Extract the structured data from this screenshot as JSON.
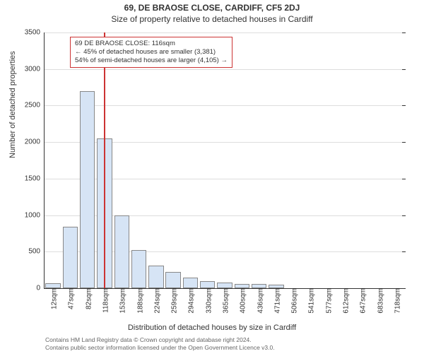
{
  "titles": {
    "main": "69, DE BRAOSE CLOSE, CARDIFF, CF5 2DJ",
    "sub": "Size of property relative to detached houses in Cardiff"
  },
  "axes": {
    "y_title": "Number of detached properties",
    "x_title": "Distribution of detached houses by size in Cardiff",
    "y_min": 0,
    "y_max": 3500,
    "y_tick_step": 500,
    "y_tick_fontsize": 10,
    "x_tick_fontsize": 10,
    "title_fontsize": 11
  },
  "chart": {
    "type": "bar",
    "background_color": "#ffffff",
    "grid_color": "#dddddd",
    "axis_color": "#333333",
    "bar_fill": "#d6e4f5",
    "bar_border": "#888888",
    "bar_width_ratio": 0.88,
    "categories": [
      "12sqm",
      "47sqm",
      "82sqm",
      "118sqm",
      "153sqm",
      "188sqm",
      "224sqm",
      "259sqm",
      "294sqm",
      "330sqm",
      "365sqm",
      "400sqm",
      "436sqm",
      "471sqm",
      "506sqm",
      "541sqm",
      "577sqm",
      "612sqm",
      "647sqm",
      "683sqm",
      "718sqm"
    ],
    "values": [
      70,
      840,
      2700,
      2050,
      1000,
      520,
      310,
      220,
      150,
      100,
      80,
      60,
      60,
      50,
      0,
      0,
      0,
      0,
      0,
      0,
      0
    ]
  },
  "marker": {
    "position_sqm": 116,
    "color": "#cc3333"
  },
  "annotation": {
    "border_color": "#cc3333",
    "background_color": "#ffffff",
    "text_color": "#333333",
    "fontsize": 9.5,
    "line1": "69 DE BRAOSE CLOSE: 116sqm",
    "line2": "← 45% of detached houses are smaller (3,381)",
    "line3": "54% of semi-detached houses are larger (4,105) →"
  },
  "footer": {
    "line1": "Contains HM Land Registry data © Crown copyright and database right 2024.",
    "line2": "Contains public sector information licensed under the Open Government Licence v3.0.",
    "color": "#666666",
    "fontsize": 8.5
  }
}
